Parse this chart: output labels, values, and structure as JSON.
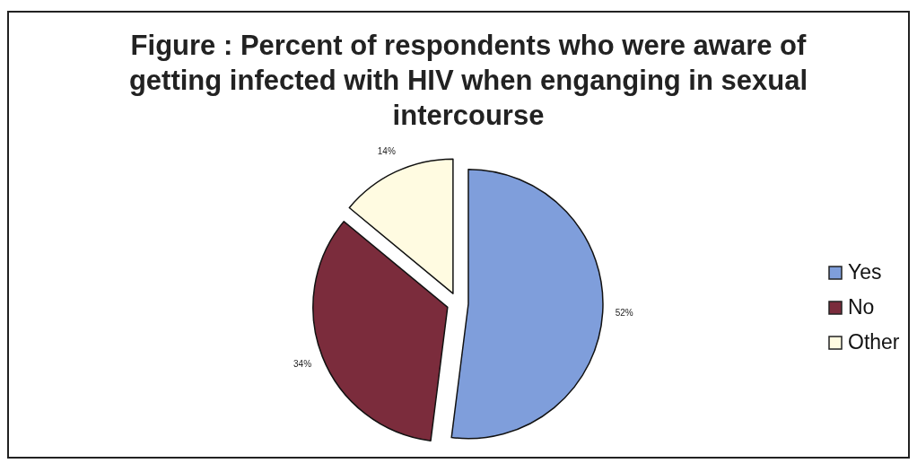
{
  "chart_data": {
    "type": "pie",
    "title": "Figure : Percent of respondents who were aware of getting infected with HIV when enganging in sexual intercourse",
    "categories": [
      "Yes",
      "No",
      "Other"
    ],
    "values": [
      52,
      34,
      14
    ],
    "value_labels": [
      "52%",
      "34%",
      "14%"
    ],
    "colors": [
      "#7f9edb",
      "#7b2c3c",
      "#fffbe1"
    ],
    "legend": "right"
  }
}
